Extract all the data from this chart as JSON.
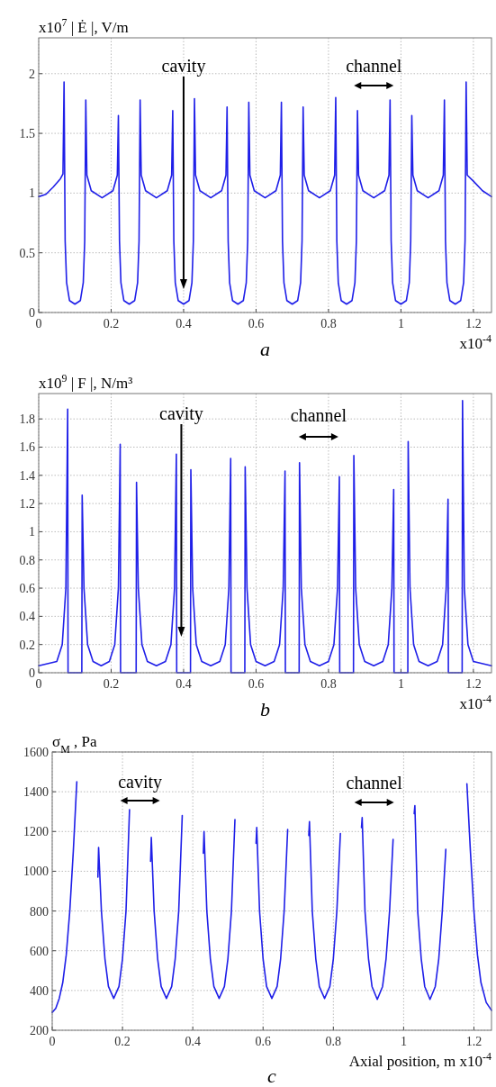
{
  "chart_data": [
    {
      "type": "line",
      "title": "a",
      "ylabel": "x10$^{7}$ | Ė |, V/m",
      "xlabel": "x10$^{-4}$",
      "color": "#1f1fe8",
      "grid": true,
      "xlim": [
        0,
        1.25
      ],
      "ylim": [
        0,
        2.3
      ],
      "xticks": [
        0,
        0.2,
        0.4,
        0.6,
        0.8,
        1,
        1.2
      ],
      "yticks": [
        0,
        0.5,
        1,
        1.5,
        2
      ],
      "annotations": [
        "cavity",
        "channel"
      ],
      "x": [
        0,
        0.02,
        0.04,
        0.06,
        0.067,
        0.07,
        0.073,
        0.077,
        0.085,
        0.1,
        0.115,
        0.123,
        0.127,
        0.13,
        0.133,
        0.145,
        0.175,
        0.205,
        0.217,
        0.22,
        0.223,
        0.227,
        0.235,
        0.25,
        0.265,
        0.273,
        0.277,
        0.28,
        0.283,
        0.295,
        0.325,
        0.355,
        0.367,
        0.37,
        0.373,
        0.377,
        0.385,
        0.4,
        0.415,
        0.423,
        0.427,
        0.43,
        0.433,
        0.445,
        0.475,
        0.505,
        0.517,
        0.52,
        0.523,
        0.527,
        0.535,
        0.55,
        0.565,
        0.573,
        0.577,
        0.58,
        0.583,
        0.595,
        0.625,
        0.655,
        0.667,
        0.67,
        0.673,
        0.677,
        0.685,
        0.7,
        0.715,
        0.723,
        0.727,
        0.73,
        0.733,
        0.745,
        0.775,
        0.805,
        0.817,
        0.82,
        0.823,
        0.827,
        0.835,
        0.85,
        0.865,
        0.873,
        0.877,
        0.88,
        0.883,
        0.895,
        0.925,
        0.955,
        0.967,
        0.97,
        0.973,
        0.977,
        0.985,
        1.0,
        1.015,
        1.023,
        1.027,
        1.03,
        1.033,
        1.045,
        1.075,
        1.105,
        1.117,
        1.12,
        1.123,
        1.127,
        1.135,
        1.15,
        1.165,
        1.173,
        1.177,
        1.18,
        1.183,
        1.2,
        1.225,
        1.25
      ],
      "values": [
        0.97,
        0.99,
        1.05,
        1.12,
        1.16,
        1.93,
        0.6,
        0.25,
        0.1,
        0.07,
        0.1,
        0.25,
        0.6,
        1.78,
        1.15,
        1.02,
        0.96,
        1.02,
        1.15,
        1.65,
        0.6,
        0.25,
        0.1,
        0.07,
        0.1,
        0.25,
        0.6,
        1.78,
        1.15,
        1.02,
        0.96,
        1.02,
        1.15,
        1.69,
        0.6,
        0.25,
        0.1,
        0.07,
        0.1,
        0.25,
        0.6,
        1.79,
        1.15,
        1.02,
        0.96,
        1.02,
        1.15,
        1.72,
        0.6,
        0.25,
        0.1,
        0.07,
        0.1,
        0.25,
        0.6,
        1.76,
        1.15,
        1.02,
        0.96,
        1.02,
        1.15,
        1.76,
        0.6,
        0.25,
        0.1,
        0.07,
        0.1,
        0.25,
        0.6,
        1.72,
        1.15,
        1.02,
        0.96,
        1.02,
        1.15,
        1.8,
        0.6,
        0.25,
        0.1,
        0.07,
        0.1,
        0.25,
        0.6,
        1.69,
        1.15,
        1.02,
        0.96,
        1.02,
        1.15,
        1.78,
        0.6,
        0.25,
        0.1,
        0.07,
        0.1,
        0.25,
        0.6,
        1.65,
        1.15,
        1.02,
        0.96,
        1.02,
        1.15,
        1.78,
        0.6,
        0.25,
        0.1,
        0.07,
        0.1,
        0.25,
        0.6,
        1.93,
        1.15,
        1.1,
        1.02,
        0.97
      ]
    },
    {
      "type": "line",
      "title": "b",
      "ylabel": "x10$^{9}$ | F |, N/m³",
      "xlabel": "x10$^{-4}$",
      "color": "#1f1fe8",
      "grid": true,
      "xlim": [
        0,
        1.25
      ],
      "ylim": [
        0,
        1.98
      ],
      "xticks": [
        0,
        0.2,
        0.4,
        0.6,
        0.8,
        1,
        1.2
      ],
      "yticks": [
        0,
        0.2,
        0.4,
        0.6,
        0.8,
        1,
        1.2,
        1.4,
        1.6,
        1.8
      ],
      "annotations": [
        "cavity",
        "channel"
      ],
      "x": [
        0,
        0.05,
        0.065,
        0.075,
        0.08,
        0.081,
        0.119,
        0.12,
        0.125,
        0.135,
        0.15,
        0.1725,
        0.195,
        0.21,
        0.22,
        0.225,
        0.226,
        0.269,
        0.27,
        0.275,
        0.285,
        0.3,
        0.325,
        0.35,
        0.365,
        0.375,
        0.38,
        0.381,
        0.419,
        0.42,
        0.425,
        0.435,
        0.45,
        0.475,
        0.5,
        0.515,
        0.525,
        0.53,
        0.531,
        0.569,
        0.57,
        0.575,
        0.585,
        0.6,
        0.625,
        0.65,
        0.665,
        0.675,
        0.68,
        0.681,
        0.719,
        0.72,
        0.725,
        0.735,
        0.75,
        0.775,
        0.8,
        0.815,
        0.825,
        0.83,
        0.831,
        0.869,
        0.87,
        0.875,
        0.885,
        0.9,
        0.925,
        0.95,
        0.965,
        0.975,
        0.98,
        0.981,
        1.019,
        1.02,
        1.025,
        1.035,
        1.05,
        1.075,
        1.1,
        1.115,
        1.125,
        1.13,
        1.131,
        1.169,
        1.17,
        1.175,
        1.185,
        1.2,
        1.25
      ],
      "values": [
        0.05,
        0.08,
        0.2,
        0.6,
        1.87,
        0,
        0,
        1.26,
        0.6,
        0.2,
        0.08,
        0.05,
        0.08,
        0.2,
        0.6,
        1.62,
        0,
        0,
        1.35,
        0.6,
        0.2,
        0.08,
        0.05,
        0.08,
        0.2,
        0.6,
        1.55,
        0,
        0,
        1.44,
        0.6,
        0.2,
        0.08,
        0.05,
        0.08,
        0.2,
        0.6,
        1.52,
        0,
        0,
        1.46,
        0.6,
        0.2,
        0.08,
        0.05,
        0.08,
        0.2,
        0.6,
        1.43,
        0,
        0,
        1.49,
        0.6,
        0.2,
        0.08,
        0.05,
        0.08,
        0.2,
        0.6,
        1.39,
        0,
        0,
        1.54,
        0.6,
        0.2,
        0.08,
        0.05,
        0.08,
        0.2,
        0.6,
        1.3,
        0,
        0,
        1.64,
        0.6,
        0.2,
        0.08,
        0.05,
        0.08,
        0.2,
        0.6,
        1.23,
        0,
        0,
        1.93,
        0.6,
        0.2,
        0.08,
        0.05
      ]
    },
    {
      "type": "line",
      "title": "c",
      "ylabel": "σ$_{M}$ , Pa",
      "xlabel": "Axial position, m x10$^{-4}$",
      "color": "#1f1fe8",
      "grid": true,
      "xlim": [
        0,
        1.25
      ],
      "ylim": [
        200,
        1600
      ],
      "xticks": [
        0,
        0.2,
        0.4,
        0.6,
        0.8,
        1,
        1.2
      ],
      "yticks": [
        200,
        400,
        600,
        800,
        1000,
        1200,
        1400,
        1600
      ],
      "annotations": [
        "cavity",
        "channel"
      ],
      "x": [
        0,
        0.01,
        0.02,
        0.03,
        0.04,
        0.05,
        0.06,
        0.07,
        0.1,
        0.13,
        0.132,
        0.14,
        0.15,
        0.16,
        0.175,
        0.19,
        0.2,
        0.21,
        0.22,
        0.25,
        0.28,
        0.282,
        0.29,
        0.3,
        0.31,
        0.325,
        0.34,
        0.35,
        0.36,
        0.37,
        0.4,
        0.43,
        0.432,
        0.44,
        0.45,
        0.46,
        0.475,
        0.49,
        0.5,
        0.51,
        0.52,
        0.55,
        0.58,
        0.582,
        0.59,
        0.6,
        0.61,
        0.625,
        0.64,
        0.65,
        0.66,
        0.67,
        0.7,
        0.73,
        0.732,
        0.74,
        0.75,
        0.76,
        0.775,
        0.79,
        0.8,
        0.81,
        0.82,
        0.85,
        0.88,
        0.882,
        0.89,
        0.9,
        0.91,
        0.925,
        0.94,
        0.95,
        0.96,
        0.97,
        1.0,
        1.03,
        1.032,
        1.04,
        1.05,
        1.06,
        1.075,
        1.09,
        1.1,
        1.11,
        1.12,
        1.15,
        1.18,
        1.19,
        1.2,
        1.21,
        1.22,
        1.235,
        1.25
      ],
      "values": [
        290,
        310,
        360,
        440,
        580,
        800,
        1100,
        1450,
        null,
        970,
        1120,
        800,
        560,
        420,
        360,
        420,
        560,
        800,
        1310,
        null,
        1050,
        1170,
        800,
        560,
        420,
        360,
        420,
        560,
        800,
        1280,
        null,
        1090,
        1200,
        800,
        560,
        420,
        360,
        420,
        560,
        800,
        1260,
        null,
        1140,
        1220,
        800,
        560,
        420,
        360,
        420,
        560,
        800,
        1210,
        null,
        1180,
        1250,
        800,
        560,
        420,
        360,
        420,
        560,
        800,
        1190,
        null,
        1220,
        1270,
        800,
        560,
        420,
        355,
        420,
        560,
        800,
        1160,
        null,
        1290,
        1330,
        800,
        560,
        420,
        355,
        420,
        560,
        800,
        1110,
        null,
        1440,
        1100,
        800,
        580,
        440,
        340,
        300
      ]
    }
  ]
}
